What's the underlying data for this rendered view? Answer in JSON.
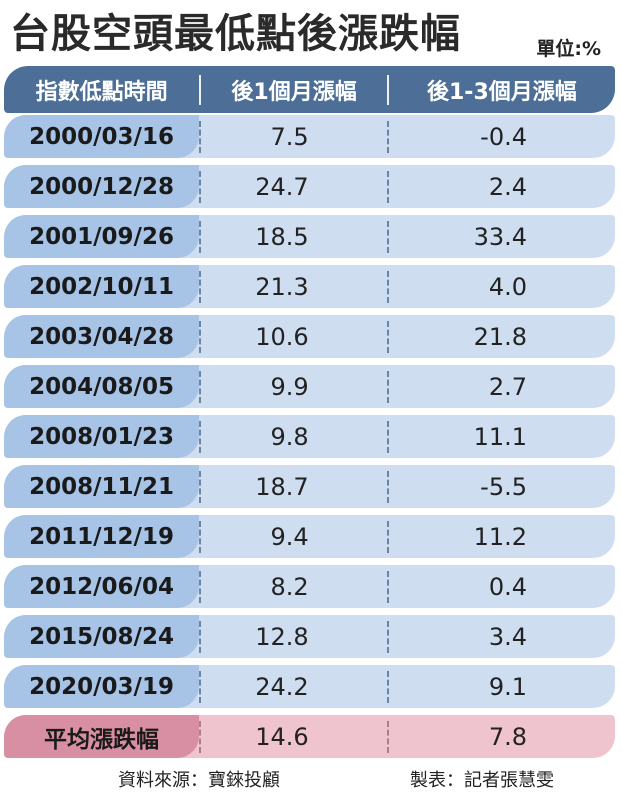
{
  "title": "台股空頭最低點後漲跌幅",
  "unit": "單位:%",
  "columns": [
    "指數低點時間",
    "後1個月漲幅",
    "後1-3個月漲幅"
  ],
  "rows": [
    {
      "date": "2000/03/16",
      "m1": "7.5",
      "m3": "-0.4"
    },
    {
      "date": "2000/12/28",
      "m1": "24.7",
      "m3": "2.4"
    },
    {
      "date": "2001/09/26",
      "m1": "18.5",
      "m3": "33.4"
    },
    {
      "date": "2002/10/11",
      "m1": "21.3",
      "m3": "4.0"
    },
    {
      "date": "2003/04/28",
      "m1": "10.6",
      "m3": "21.8"
    },
    {
      "date": "2004/08/05",
      "m1": "9.9",
      "m3": "2.7"
    },
    {
      "date": "2008/01/23",
      "m1": "9.8",
      "m3": "11.1"
    },
    {
      "date": "2008/11/21",
      "m1": "18.7",
      "m3": "-5.5"
    },
    {
      "date": "2011/12/19",
      "m1": "9.4",
      "m3": "11.2"
    },
    {
      "date": "2012/06/04",
      "m1": "8.2",
      "m3": "0.4"
    },
    {
      "date": "2015/08/24",
      "m1": "12.8",
      "m3": "3.4"
    },
    {
      "date": "2020/03/19",
      "m1": "24.2",
      "m3": "9.1"
    }
  ],
  "average": {
    "label": "平均漲跌幅",
    "m1": "14.6",
    "m3": "7.8"
  },
  "footer": {
    "source": "資料來源：寶錸投顧",
    "maker": "製表：記者張慧雯"
  },
  "colors": {
    "header": "#4d6f97",
    "row": "#cfddf0",
    "date_cell": "#a7c3e6",
    "avg_row": "#efc4cf",
    "avg_cell": "#d98fa3"
  }
}
